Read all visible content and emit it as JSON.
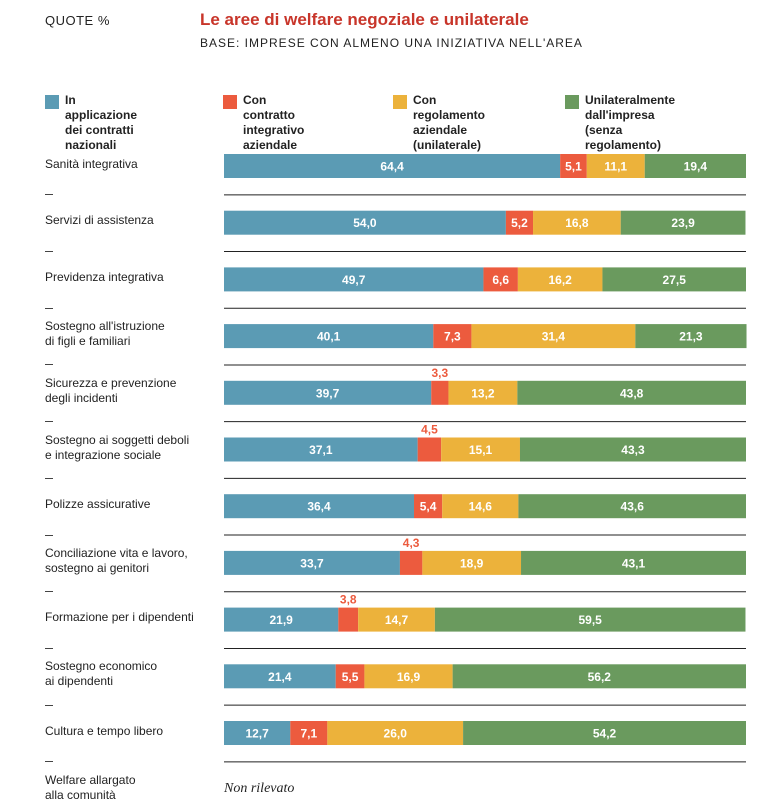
{
  "header": {
    "quote_label": "QUOTE %",
    "title": "Le aree di welfare negoziale e unilaterale",
    "subtitle": "BASE: IMPRESE CON ALMENO UNA INIZIATIVA NELL'AREA"
  },
  "colors": {
    "blue": "#5b9bb4",
    "red": "#ec5b3e",
    "yellow": "#ecb23b",
    "green": "#6a9a5e",
    "bar_text": "#ffffff",
    "callout_text": "#ec5b3e",
    "separator": "#222222"
  },
  "chart_data": {
    "type": "bar",
    "orientation": "horizontal",
    "stacked": true,
    "title": "Le aree di welfare negoziale e unilaterale",
    "subtitle": "BASE: IMPRESE CON ALMENO UNA INIZIATIVA NELL'AREA",
    "unit": "QUOTE %",
    "xlim": [
      0,
      100
    ],
    "legend_position": "top",
    "categories": [
      "Sanità integrativa",
      "Servizi di assistenza",
      "Previdenza integrativa",
      "Sostegno all'istruzione\ndi figli e familiari",
      "Sicurezza e prevenzione\ndegli incidenti",
      "Sostegno ai soggetti deboli\ne integrazione sociale",
      "Polizze assicurative",
      "Conciliazione vita e lavoro,\nsostegno ai genitori",
      "Formazione per i dipendenti",
      "Sostegno economico\nai dipendenti",
      "Cultura e tempo libero",
      "Welfare allargato\nalla comunità"
    ],
    "series": [
      {
        "name": "In applicazione\ndei contratti nazionali",
        "color": "#5b9bb4",
        "values": [
          64.4,
          54.0,
          49.7,
          40.1,
          39.7,
          37.1,
          36.4,
          33.7,
          21.9,
          21.4,
          12.7,
          null
        ],
        "labels": [
          "64,4",
          "54,0",
          "49,7",
          "40,1",
          "39,7",
          "37,1",
          "36,4",
          "33,7",
          "21,9",
          "21,4",
          "12,7",
          ""
        ]
      },
      {
        "name": "Con contratto\nintegrativo aziendale",
        "color": "#ec5b3e",
        "values": [
          5.1,
          5.2,
          6.6,
          7.3,
          3.3,
          4.5,
          5.4,
          4.3,
          3.8,
          5.5,
          7.1,
          null
        ],
        "labels": [
          "5,1",
          "5,2",
          "6,6",
          "7,3",
          "3,3",
          "4,5",
          "5,4",
          "4,3",
          "3,8",
          "5,5",
          "7,1",
          ""
        ],
        "outside_label": [
          false,
          false,
          false,
          false,
          true,
          true,
          false,
          true,
          true,
          false,
          false,
          false
        ]
      },
      {
        "name": "Con regolamento\naziendale (unilaterale)",
        "color": "#ecb23b",
        "values": [
          11.1,
          16.8,
          16.2,
          31.4,
          13.2,
          15.1,
          14.6,
          18.9,
          14.7,
          16.9,
          26.0,
          null
        ],
        "labels": [
          "11,1",
          "16,8",
          "16,2",
          "31,4",
          "13,2",
          "15,1",
          "14,6",
          "18,9",
          "14,7",
          "16,9",
          "26,0",
          ""
        ]
      },
      {
        "name": "Unilateralmente dall'impresa\n(senza regolamento)",
        "color": "#6a9a5e",
        "values": [
          19.4,
          23.9,
          27.5,
          21.3,
          43.8,
          43.3,
          43.6,
          43.1,
          59.5,
          56.2,
          54.2,
          null
        ],
        "labels": [
          "19,4",
          "23,9",
          "27,5",
          "21,3",
          "43,8",
          "43,3",
          "43,6",
          "43,1",
          "59,5",
          "56,2",
          "54,2",
          ""
        ]
      }
    ],
    "notes": [
      {
        "category_index": 11,
        "text": "Non rilevato"
      }
    ]
  }
}
